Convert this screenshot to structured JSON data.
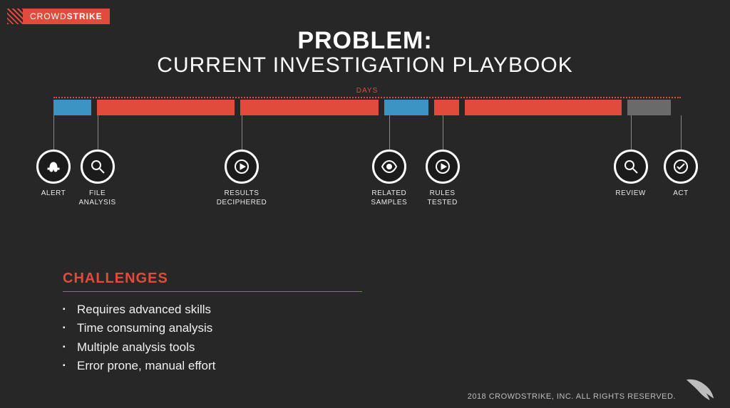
{
  "brand": {
    "part1": "CROWD",
    "part2": "STRIKE"
  },
  "title": {
    "line1": "PROBLEM:",
    "line2": "CURRENT INVESTIGATION PLAYBOOK"
  },
  "timeline": {
    "days_label": "DAYS",
    "colors": {
      "blue": "#3c94c4",
      "red": "#e14b3c",
      "gray": "#6a6a6a"
    },
    "segments": [
      {
        "width_pct": 6,
        "color": "blue"
      },
      {
        "width_pct": 22,
        "color": "red"
      },
      {
        "width_pct": 22,
        "color": "red"
      },
      {
        "width_pct": 7,
        "color": "blue"
      },
      {
        "width_pct": 4,
        "color": "red"
      },
      {
        "width_pct": 25,
        "color": "red"
      },
      {
        "width_pct": 7,
        "color": "gray"
      }
    ],
    "segment_gap_pct": 1,
    "steps": [
      {
        "label": "ALERT",
        "pos_pct": 0,
        "icon": "hat"
      },
      {
        "label": "FILE\nANALYSIS",
        "pos_pct": 7,
        "icon": "search"
      },
      {
        "label": "RESULTS\nDECIPHERED",
        "pos_pct": 30,
        "icon": "play"
      },
      {
        "label": "RELATED\nSAMPLES",
        "pos_pct": 53.5,
        "icon": "eye"
      },
      {
        "label": "RULES\nTESTED",
        "pos_pct": 62,
        "icon": "play"
      },
      {
        "label": "REVIEW",
        "pos_pct": 92,
        "icon": "search"
      },
      {
        "label": "ACT",
        "pos_pct": 100,
        "icon": "check"
      }
    ]
  },
  "challenges": {
    "title": "CHALLENGES",
    "items": [
      "Requires advanced skills",
      "Time consuming analysis",
      "Multiple analysis tools",
      "Error prone, manual effort"
    ]
  },
  "footer": {
    "copyright": "2018 CROWDSTRIKE, INC. ALL RIGHTS RESERVED."
  }
}
